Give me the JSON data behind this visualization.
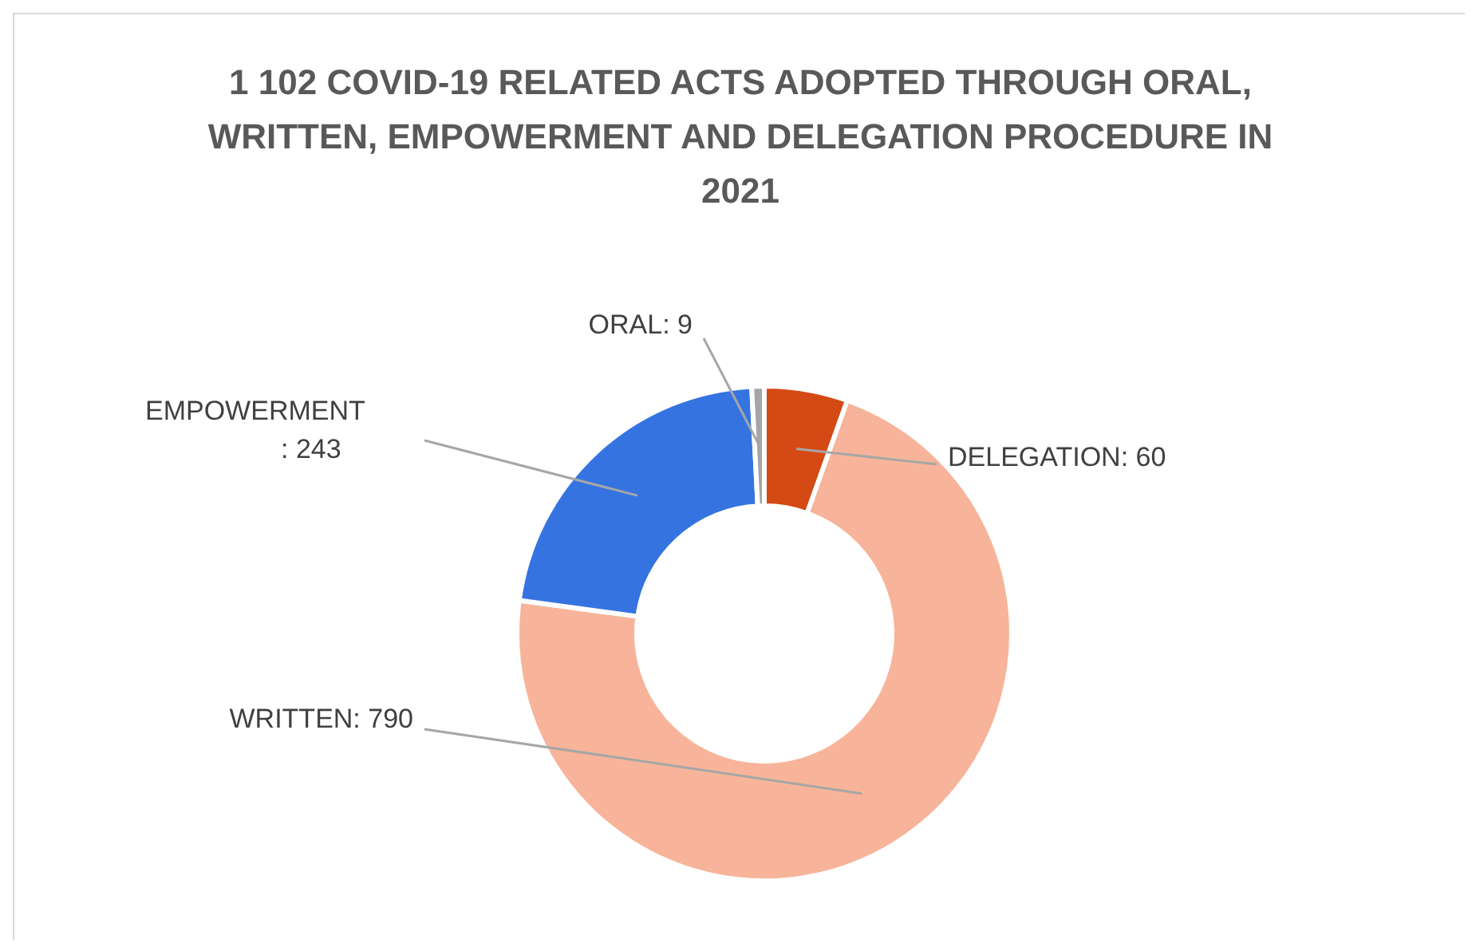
{
  "chart_data": {
    "type": "donut",
    "title": "1 102 COVID-19 RELATED ACTS ADOPTED THROUGH ORAL, WRITTEN, EMPOWERMENT AND DELEGATION PROCEDURE IN  2021",
    "categories": [
      "DELEGATION",
      "WRITTEN",
      "EMPOWERMENT",
      "ORAL"
    ],
    "values": [
      60,
      790,
      243,
      9
    ],
    "value_labels": [
      ": 60",
      ": 790",
      ": 243",
      ": 9"
    ],
    "colors": [
      "#d54a14",
      "#f7b49a",
      "#3574e0",
      "#a5a5a5"
    ],
    "legend": false
  }
}
